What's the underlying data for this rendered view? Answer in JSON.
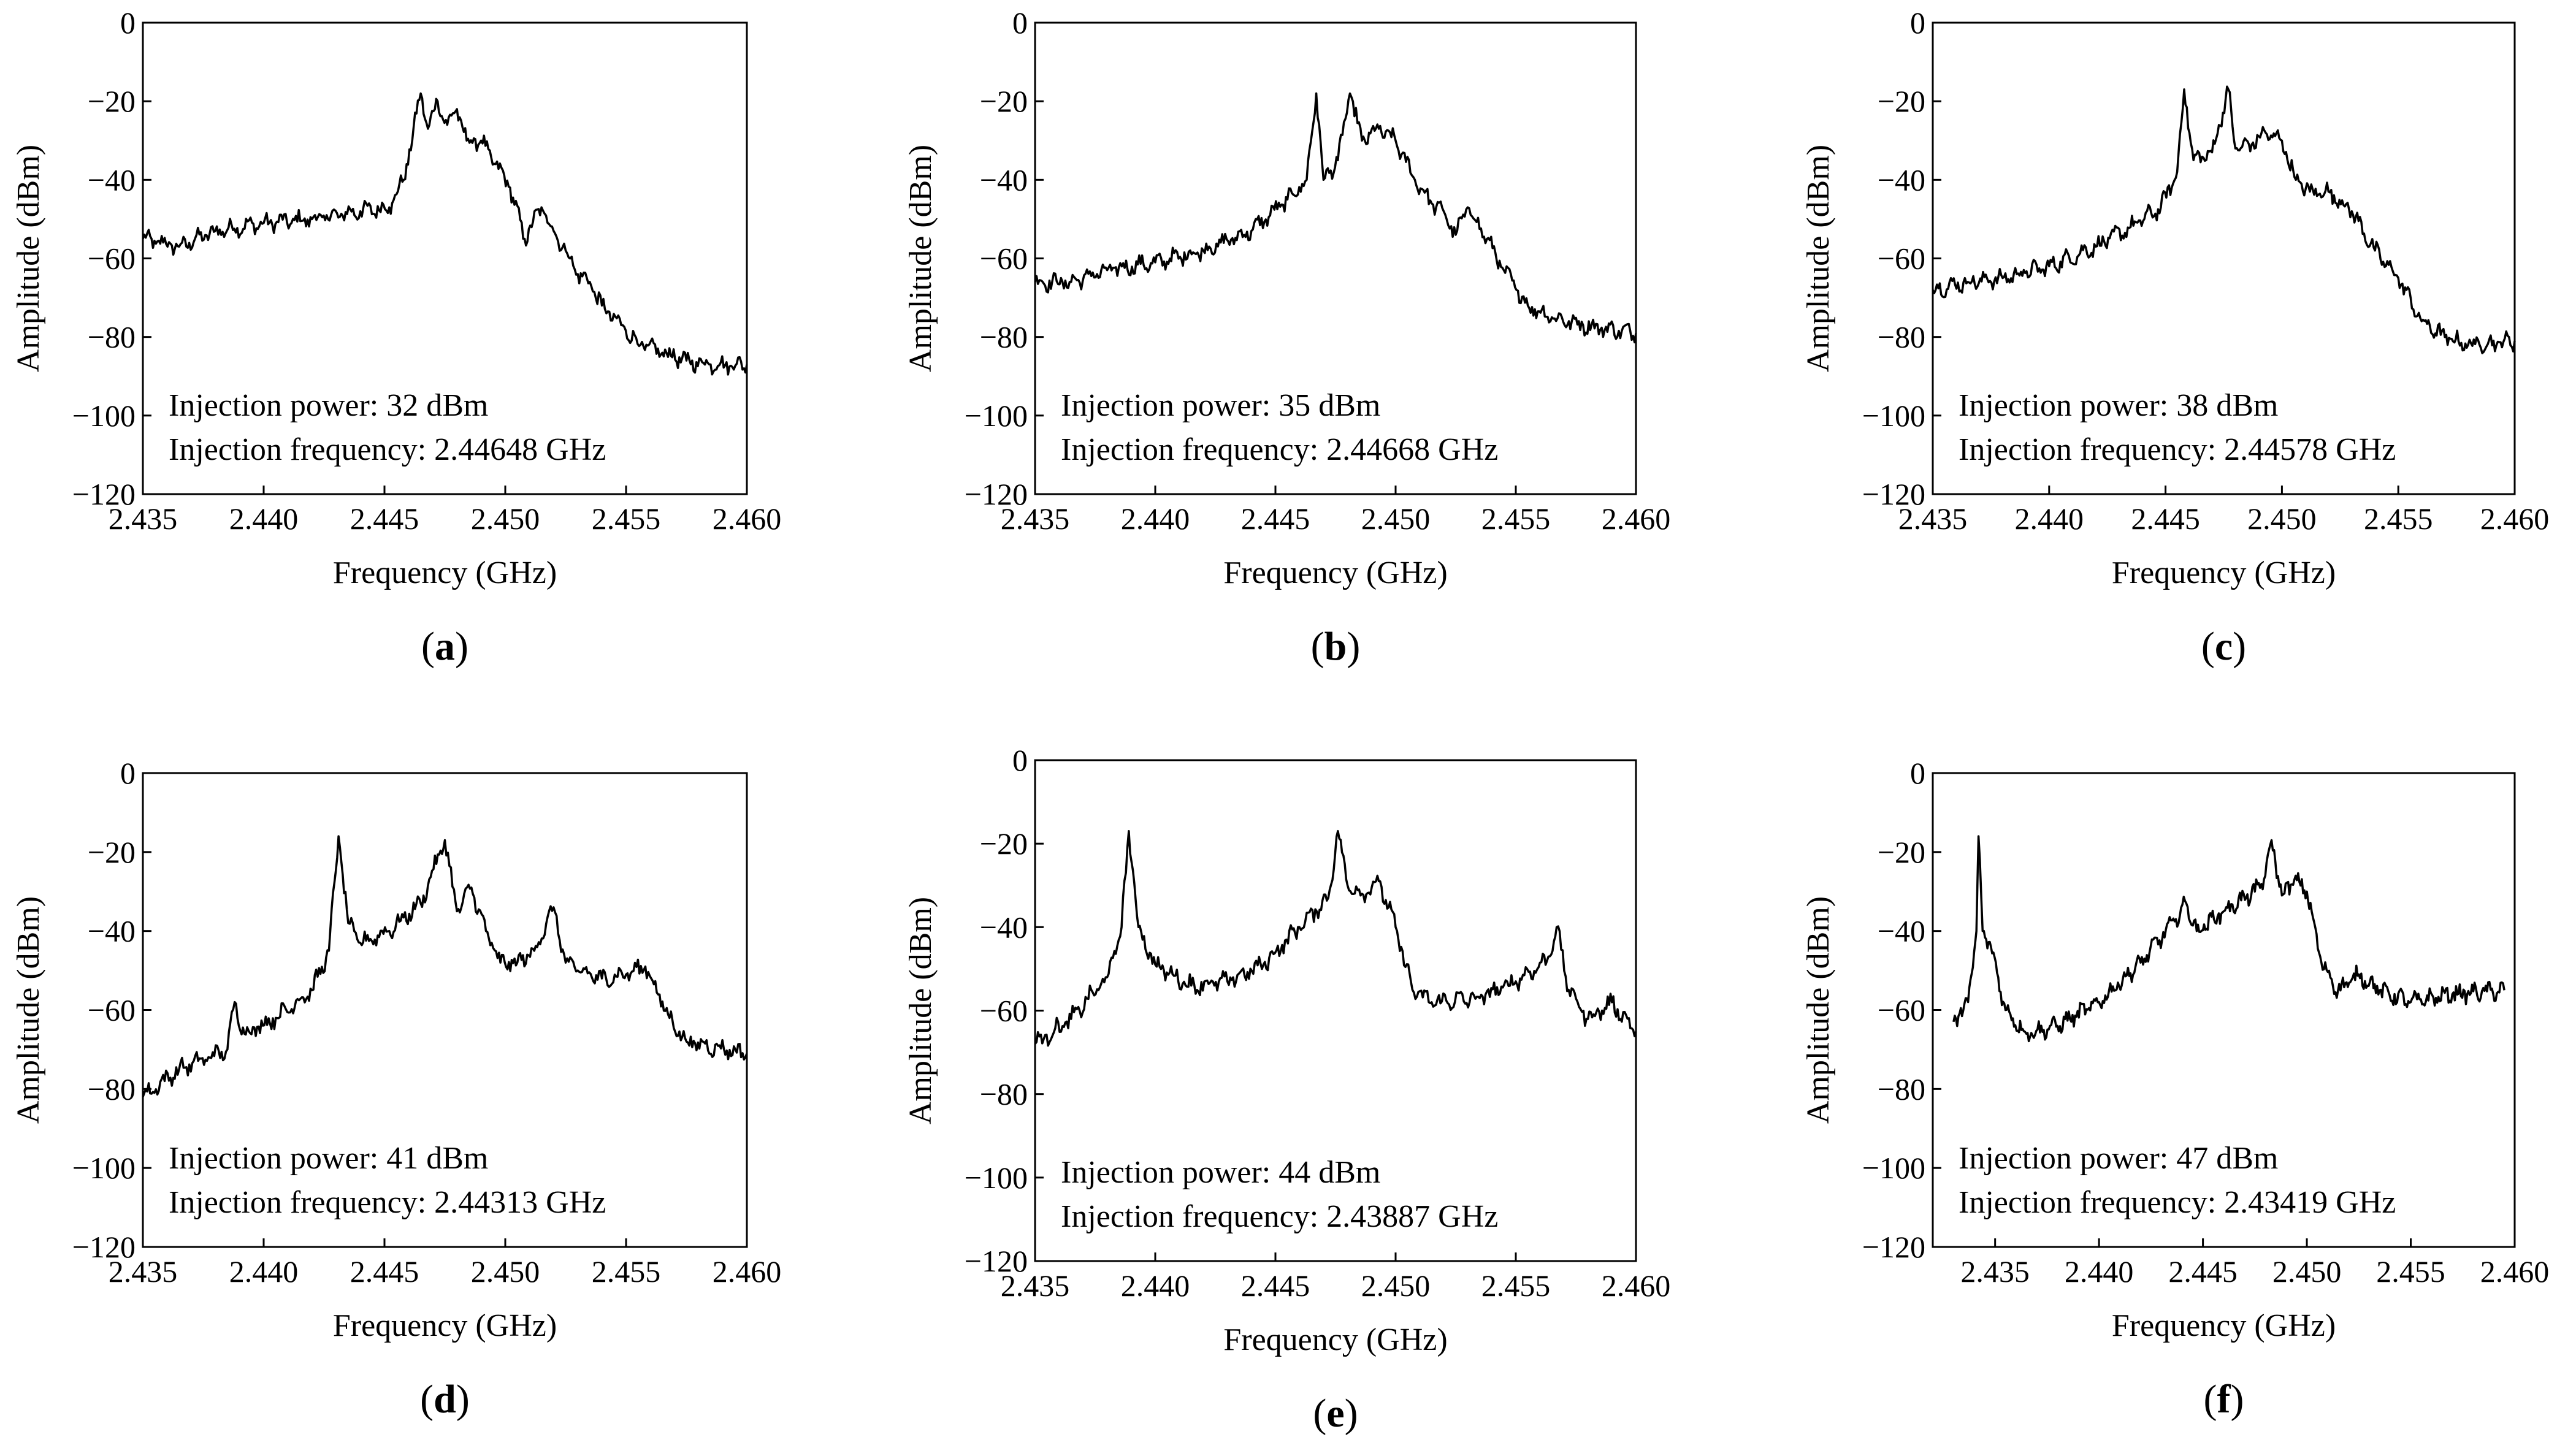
{
  "chart_data": [
    {
      "type": "line",
      "panel_label": "a",
      "xlabel": "Frequency (GHz)",
      "ylabel": "Amplitude (dBm)",
      "xlim": [
        2.435,
        2.46
      ],
      "ylim": [
        -120,
        0
      ],
      "x_ticks": [
        "2.435",
        "2.440",
        "2.445",
        "2.450",
        "2.455",
        "2.460"
      ],
      "y_ticks": [
        "0",
        "−20",
        "−40",
        "−60",
        "−80",
        "−100",
        "−120"
      ],
      "annotation_power": "Injection power: 32 dBm",
      "annotation_frequency": "Injection frequency: 2.44648 GHz",
      "series": [
        {
          "name": "spectrum",
          "x": [
            2.435,
            2.4365,
            2.438,
            2.44,
            2.442,
            2.444,
            2.4452,
            2.4458,
            2.4465,
            2.4468,
            2.4472,
            2.4476,
            2.448,
            2.4484,
            2.449,
            2.4496,
            2.4502,
            2.4508,
            2.4515,
            2.452,
            2.4525,
            2.453,
            2.4535,
            2.454,
            2.4548,
            2.4556,
            2.4565,
            2.4575,
            2.4585,
            2.46
          ],
          "y": [
            -55,
            -57,
            -53,
            -51,
            -50,
            -48,
            -47,
            -40,
            -18,
            -27,
            -20,
            -26,
            -22,
            -30,
            -30,
            -36,
            -42,
            -55,
            -47,
            -53,
            -58,
            -64,
            -66,
            -72,
            -77,
            -82,
            -84,
            -86,
            -87,
            -87
          ]
        }
      ]
    },
    {
      "type": "line",
      "panel_label": "b",
      "xlabel": "Frequency (GHz)",
      "ylabel": "Amplitude (dBm)",
      "xlim": [
        2.435,
        2.46
      ],
      "ylim": [
        -120,
        0
      ],
      "x_ticks": [
        "2.435",
        "2.440",
        "2.445",
        "2.450",
        "2.455",
        "2.460"
      ],
      "y_ticks": [
        "0",
        "−20",
        "−40",
        "−60",
        "−80",
        "−100",
        "−120"
      ],
      "annotation_power": "Injection power: 35 dBm",
      "annotation_frequency": "Injection frequency: 2.44668 GHz",
      "series": [
        {
          "name": "spectrum",
          "x": [
            2.435,
            2.4365,
            2.438,
            2.44,
            2.442,
            2.444,
            2.4455,
            2.4463,
            2.4467,
            2.447,
            2.4476,
            2.4481,
            2.4486,
            2.4493,
            2.45,
            2.4508,
            2.4515,
            2.452,
            2.4525,
            2.453,
            2.4538,
            2.4545,
            2.4555,
            2.4565,
            2.4578,
            2.46
          ],
          "y": [
            -66,
            -66,
            -63,
            -61,
            -58,
            -53,
            -45,
            -40,
            -18,
            -40,
            -35,
            -18,
            -30,
            -27,
            -30,
            -40,
            -46,
            -48,
            -54,
            -47,
            -55,
            -63,
            -72,
            -75,
            -77,
            -79
          ]
        }
      ]
    },
    {
      "type": "line",
      "panel_label": "c",
      "xlabel": "Frequency (GHz)",
      "ylabel": "Amplitude (dBm)",
      "xlim": [
        2.435,
        2.46
      ],
      "ylim": [
        -120,
        0
      ],
      "x_ticks": [
        "2.435",
        "2.440",
        "2.445",
        "2.450",
        "2.455",
        "2.460"
      ],
      "y_ticks": [
        "0",
        "−20",
        "−40",
        "−60",
        "−80",
        "−100",
        "−120"
      ],
      "annotation_power": "Injection power: 38 dBm",
      "annotation_frequency": "Injection frequency: 2.44578 GHz",
      "series": [
        {
          "name": "spectrum",
          "x": [
            2.435,
            2.4365,
            2.438,
            2.44,
            2.442,
            2.4435,
            2.4448,
            2.4455,
            2.4458,
            2.4462,
            2.447,
            2.4477,
            2.448,
            2.4487,
            2.4493,
            2.45,
            2.4506,
            2.4512,
            2.452,
            2.453,
            2.454,
            2.455,
            2.456,
            2.457,
            2.458,
            2.46
          ],
          "y": [
            -68,
            -66,
            -65,
            -62,
            -57,
            -52,
            -47,
            -38,
            -17,
            -35,
            -33,
            -17,
            -32,
            -31,
            -28,
            -30,
            -40,
            -43,
            -43,
            -48,
            -58,
            -65,
            -76,
            -80,
            -82,
            -81
          ]
        }
      ]
    },
    {
      "type": "line",
      "panel_label": "d",
      "xlabel": "Frequency (GHz)",
      "ylabel": "Amplitude (dBm)",
      "xlim": [
        2.435,
        2.46
      ],
      "ylim": [
        -120,
        0
      ],
      "x_ticks": [
        "2.435",
        "2.440",
        "2.445",
        "2.450",
        "2.455",
        "2.460"
      ],
      "y_ticks": [
        "0",
        "−20",
        "−40",
        "−60",
        "−80",
        "−100",
        "−120"
      ],
      "annotation_power": "Injection power: 41 dBm",
      "annotation_frequency": "Injection frequency: 2.44313 GHz",
      "series": [
        {
          "name": "spectrum",
          "x": [
            2.435,
            2.4365,
            2.4385,
            2.4388,
            2.4392,
            2.4405,
            2.442,
            2.4427,
            2.4431,
            2.4435,
            2.444,
            2.4452,
            2.4465,
            2.4475,
            2.448,
            2.4486,
            2.4492,
            2.4498,
            2.4505,
            2.4512,
            2.452,
            2.4525,
            2.453,
            2.454,
            2.455,
            2.4558,
            2.4568,
            2.4575,
            2.46
          ],
          "y": [
            -82,
            -75,
            -70,
            -58,
            -66,
            -62,
            -55,
            -45,
            -16,
            -38,
            -43,
            -40,
            -33,
            -17,
            -35,
            -29,
            -40,
            -48,
            -48,
            -45,
            -34,
            -48,
            -50,
            -52,
            -51,
            -49,
            -62,
            -68,
            -71
          ]
        }
      ]
    },
    {
      "type": "line",
      "panel_label": "e",
      "xlabel": "Frequency (GHz)",
      "ylabel": "Amplitude (dBm)",
      "xlim": [
        2.435,
        2.46
      ],
      "ylim": [
        -120,
        0
      ],
      "x_ticks": [
        "2.435",
        "2.440",
        "2.445",
        "2.450",
        "2.455",
        "2.460"
      ],
      "y_ticks": [
        "0",
        "−20",
        "−40",
        "−60",
        "−80",
        "−100",
        "−120"
      ],
      "annotation_power": "Injection power: 44 dBm",
      "annotation_frequency": "Injection frequency: 2.43887 GHz",
      "series": [
        {
          "name": "spectrum",
          "x": [
            2.435,
            2.4365,
            2.438,
            2.4386,
            2.4389,
            2.4393,
            2.44,
            2.4415,
            2.443,
            2.4445,
            2.446,
            2.4472,
            2.4476,
            2.448,
            2.4486,
            2.4493,
            2.45,
            2.4507,
            2.4515,
            2.4535,
            2.455,
            2.4563,
            2.4567,
            2.4572,
            2.458,
            2.459,
            2.46
          ],
          "y": [
            -68,
            -62,
            -52,
            -40,
            -17,
            -40,
            -49,
            -54,
            -53,
            -49,
            -40,
            -33,
            -17,
            -30,
            -32,
            -29,
            -40,
            -55,
            -58,
            -57,
            -53,
            -48,
            -40,
            -55,
            -62,
            -58,
            -65
          ]
        }
      ]
    },
    {
      "type": "line",
      "panel_label": "f",
      "xlabel": "Frequency (GHz)",
      "ylabel": "Amplitude (dBm)",
      "xlim": [
        2.432,
        2.46
      ],
      "ylim": [
        -120,
        0
      ],
      "x_ticks": [
        "2.435",
        "2.440",
        "2.445",
        "2.450",
        "2.455",
        "2.460"
      ],
      "y_ticks": [
        "0",
        "−20",
        "−40",
        "−60",
        "−80",
        "−100",
        "−120"
      ],
      "annotation_power": "Injection power: 47 dBm",
      "annotation_frequency": "Injection frequency: 2.43419 GHz",
      "series": [
        {
          "name": "spectrum",
          "x": [
            2.433,
            2.4337,
            2.4341,
            2.4342,
            2.4344,
            2.4348,
            2.4355,
            2.4365,
            2.438,
            2.44,
            2.442,
            2.4437,
            2.4442,
            2.4447,
            2.446,
            2.4475,
            2.448,
            2.4483,
            2.4488,
            2.4494,
            2.45,
            2.4507,
            2.4515,
            2.4525,
            2.4535,
            2.455,
            2.457,
            2.4595
          ],
          "y": [
            -63,
            -58,
            -40,
            -16,
            -40,
            -44,
            -60,
            -66,
            -64,
            -58,
            -48,
            -37,
            -33,
            -40,
            -35,
            -30,
            -26,
            -17,
            -31,
            -27,
            -30,
            -48,
            -55,
            -51,
            -55,
            -58,
            -56,
            -55
          ]
        }
      ]
    }
  ]
}
